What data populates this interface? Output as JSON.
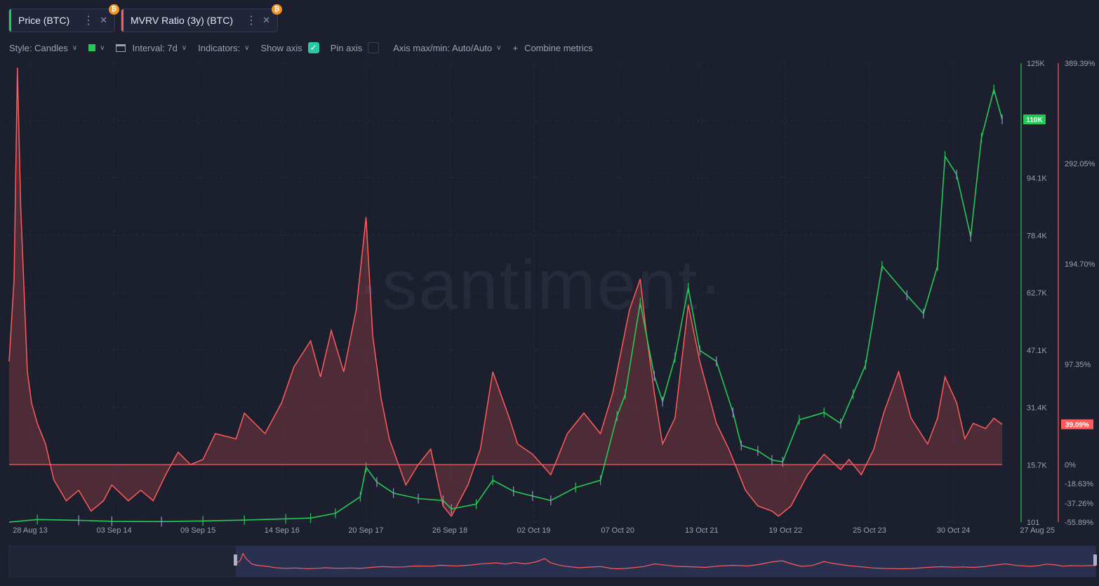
{
  "tabs": [
    {
      "label": "Price (BTC)",
      "color": "#26c953"
    },
    {
      "label": "MVRV Ratio (3y) (BTC)",
      "color": "#ff5b5b"
    }
  ],
  "toolbar": {
    "style": "Style: Candles",
    "interval": "Interval: 7d",
    "indicators": "Indicators:",
    "show_axis": "Show axis",
    "pin_axis": "Pin axis",
    "axis_maxmin": "Axis max/min: Auto/Auto",
    "combine": "Combine metrics"
  },
  "watermark": "·santiment·",
  "chart_data": {
    "type": "line",
    "x_ticks": [
      "28 Aug 13",
      "03 Sep 14",
      "09 Sep 15",
      "14 Sep 16",
      "20 Sep 17",
      "26 Sep 18",
      "02 Oct 19",
      "07 Oct 20",
      "13 Oct 21",
      "19 Oct 22",
      "25 Oct 23",
      "30 Oct 24",
      "27 Aug 25"
    ],
    "price_axis": {
      "ticks": [
        "125K",
        "110K",
        "94.1K",
        "78.4K",
        "62.7K",
        "47.1K",
        "31.4K",
        "15.7K",
        "101"
      ],
      "tick_values": [
        125000,
        109700,
        94100,
        78400,
        62700,
        47100,
        31400,
        15700,
        101
      ],
      "current_label": "110K",
      "current_value": 110000,
      "color": "#26c953"
    },
    "mvrv_axis": {
      "ticks": [
        "389.39%",
        "292.05%",
        "194.70%",
        "97.35%",
        "39.09%",
        "0%",
        "-18.63%",
        "-37.26%",
        "-55.89%"
      ],
      "tick_values": [
        389.39,
        292.05,
        194.7,
        97.35,
        39.09,
        0,
        -18.63,
        -37.26,
        -55.89
      ],
      "current_label": "39.09%",
      "current_value": 39.09,
      "color": "#ff5b5b"
    },
    "series": [
      {
        "name": "Price (BTC)",
        "style": "candles",
        "color": "#26c953",
        "x": [
          2013.66,
          2014.0,
          2014.5,
          2014.9,
          2015.5,
          2016.0,
          2016.5,
          2017.0,
          2017.3,
          2017.6,
          2017.9,
          2017.97,
          2018.1,
          2018.3,
          2018.6,
          2018.9,
          2019.0,
          2019.3,
          2019.5,
          2019.75,
          2019.98,
          2020.2,
          2020.5,
          2020.8,
          2021.0,
          2021.1,
          2021.28,
          2021.45,
          2021.55,
          2021.7,
          2021.86,
          2022.0,
          2022.2,
          2022.4,
          2022.5,
          2022.7,
          2022.87,
          2023.0,
          2023.2,
          2023.5,
          2023.7,
          2023.85,
          2024.0,
          2024.2,
          2024.5,
          2024.7,
          2024.87,
          2024.96,
          2025.1,
          2025.27,
          2025.4,
          2025.55,
          2025.65
        ],
        "values": [
          120,
          800,
          600,
          330,
          250,
          430,
          650,
          1000,
          1200,
          2500,
          7000,
          15000,
          11000,
          8000,
          6500,
          6000,
          3700,
          5000,
          11500,
          8500,
          7200,
          6000,
          9500,
          11500,
          29000,
          35000,
          60000,
          40000,
          33000,
          45000,
          64000,
          47000,
          44000,
          30000,
          21000,
          19500,
          17000,
          16500,
          28000,
          30000,
          27000,
          35000,
          43000,
          70000,
          62000,
          57000,
          70000,
          100000,
          95000,
          78000,
          105000,
          118000,
          110000
        ]
      },
      {
        "name": "MVRV Ratio (3y) (BTC)",
        "style": "area",
        "color": "#ff5b5b",
        "x": [
          2013.66,
          2013.72,
          2013.76,
          2013.8,
          2013.84,
          2013.88,
          2013.93,
          2014.0,
          2014.1,
          2014.2,
          2014.35,
          2014.5,
          2014.65,
          2014.8,
          2014.9,
          2015.1,
          2015.25,
          2015.4,
          2015.55,
          2015.7,
          2015.85,
          2016.0,
          2016.15,
          2016.4,
          2016.5,
          2016.75,
          2016.95,
          2017.1,
          2017.3,
          2017.42,
          2017.55,
          2017.7,
          2017.85,
          2017.97,
          2018.05,
          2018.15,
          2018.25,
          2018.45,
          2018.6,
          2018.75,
          2018.9,
          2019.0,
          2019.2,
          2019.35,
          2019.5,
          2019.7,
          2019.8,
          2019.98,
          2020.2,
          2020.4,
          2020.6,
          2020.8,
          2020.95,
          2021.05,
          2021.15,
          2021.28,
          2021.35,
          2021.45,
          2021.55,
          2021.7,
          2021.86,
          2022.0,
          2022.2,
          2022.35,
          2022.45,
          2022.55,
          2022.7,
          2022.87,
          2022.95,
          2023.1,
          2023.3,
          2023.5,
          2023.7,
          2023.8,
          2023.95,
          2024.1,
          2024.22,
          2024.4,
          2024.55,
          2024.75,
          2024.87,
          2024.96,
          2025.1,
          2025.2,
          2025.3,
          2025.45,
          2025.55,
          2025.65
        ],
        "values": [
          100,
          180,
          385,
          250,
          170,
          90,
          60,
          40,
          20,
          -15,
          -35,
          -25,
          -45,
          -35,
          -20,
          -35,
          -25,
          -35,
          -10,
          12,
          0,
          5,
          30,
          25,
          50,
          30,
          60,
          95,
          120,
          85,
          130,
          90,
          150,
          240,
          125,
          65,
          25,
          -20,
          0,
          15,
          -40,
          -50,
          -20,
          15,
          90,
          45,
          20,
          10,
          -10,
          30,
          50,
          30,
          70,
          110,
          150,
          180,
          130,
          70,
          20,
          45,
          155,
          100,
          40,
          15,
          -5,
          -25,
          -40,
          -45,
          -50,
          -40,
          -10,
          10,
          -5,
          5,
          -10,
          15,
          50,
          90,
          45,
          20,
          45,
          85,
          60,
          25,
          40,
          35,
          45,
          39.09
        ]
      }
    ],
    "mvrv_zero_line": 0,
    "x_range": [
      2013.66,
      2025.65
    ],
    "grid": true,
    "legend": "top-left tabs"
  }
}
